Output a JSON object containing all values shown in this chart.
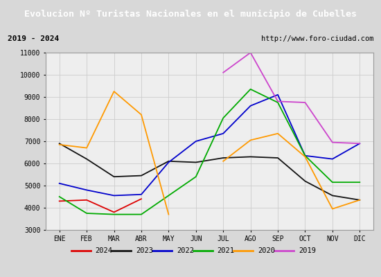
{
  "title": "Evolucion Nº Turistas Nacionales en el municipio de Cubelles",
  "subtitle_left": "2019 - 2024",
  "subtitle_right": "http://www.foro-ciudad.com",
  "months": [
    "ENE",
    "FEB",
    "MAR",
    "ABR",
    "MAY",
    "JUN",
    "JUL",
    "AGO",
    "SEP",
    "OCT",
    "NOV",
    "DIC"
  ],
  "ylim": [
    3000,
    11000
  ],
  "yticks": [
    3000,
    4000,
    5000,
    6000,
    7000,
    8000,
    9000,
    10000,
    11000
  ],
  "series_data": {
    "2024": [
      4300,
      4350,
      3800,
      4400,
      null,
      null,
      null,
      null,
      null,
      null,
      null,
      null
    ],
    "2023": [
      6900,
      6200,
      5400,
      5450,
      6100,
      6050,
      6250,
      6300,
      6250,
      5200,
      4550,
      4350
    ],
    "2022": [
      5100,
      4800,
      4550,
      4600,
      6050,
      7000,
      7350,
      8600,
      9100,
      6350,
      6200,
      6900
    ],
    "2021": [
      4500,
      3750,
      3700,
      3700,
      4550,
      5400,
      8050,
      9350,
      8750,
      6350,
      5150,
      5150
    ],
    "2020": [
      6850,
      6700,
      9250,
      8200,
      3700,
      null,
      6100,
      7050,
      7350,
      6300,
      3950,
      4350
    ],
    "2019": [
      null,
      null,
      null,
      null,
      null,
      null,
      10100,
      11000,
      8800,
      8750,
      6950,
      6900
    ]
  },
  "series_colors": {
    "2024": "#dd0000",
    "2023": "#111111",
    "2022": "#0000cc",
    "2021": "#00aa00",
    "2020": "#ff9900",
    "2019": "#cc44cc"
  },
  "legend_order": [
    "2024",
    "2023",
    "2022",
    "2021",
    "2020",
    "2019"
  ],
  "bg_color": "#d8d8d8",
  "plot_bg_color": "#eeeeee",
  "title_bg_color": "#4472c4",
  "title_text_color": "#ffffff",
  "grid_color": "#cccccc",
  "subtitle_bg_color": "#d8d8d8"
}
